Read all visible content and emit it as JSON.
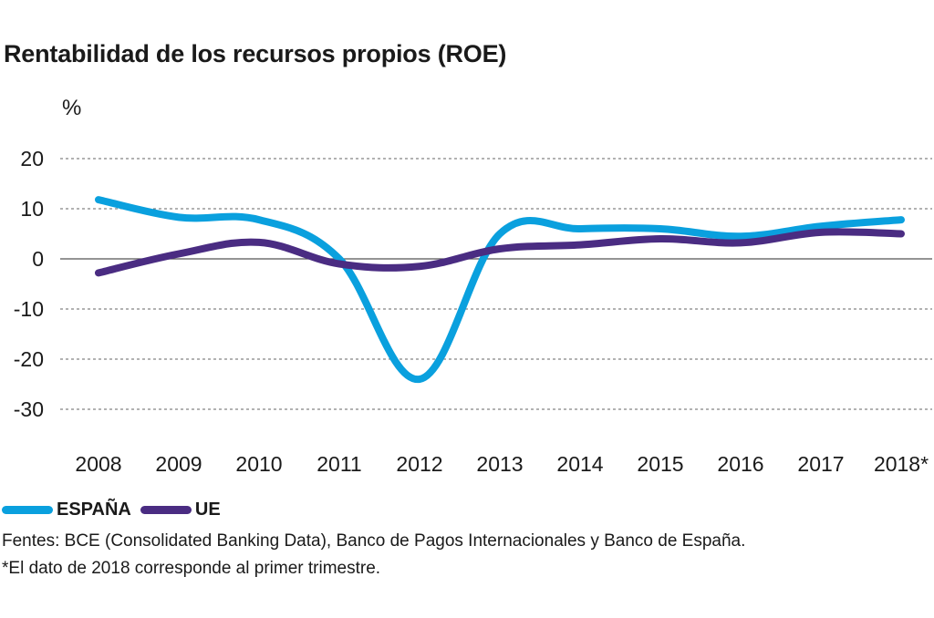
{
  "title": "Rentabilidad de los recursos propios (ROE)",
  "unit_label": "%",
  "legend": [
    {
      "label": "ESPAÑA",
      "color": "#0aa0de"
    },
    {
      "label": "UE",
      "color": "#4a2c82"
    }
  ],
  "notes": [
    "Fentes: BCE (Consolidated Banking Data), Banco de Pagos Internacionales y Banco de España.",
    "*El dato de 2018 corresponde al primer trimestre."
  ],
  "chart_data": {
    "type": "line",
    "title": "Rentabilidad de los recursos propios (ROE)",
    "ylabel": "%",
    "categories": [
      "2008",
      "2009",
      "2010",
      "2011",
      "2012",
      "2013",
      "2014",
      "2015",
      "2016",
      "2017",
      "2018*"
    ],
    "yticks": [
      "20",
      "10",
      "0",
      "-10",
      "-20",
      "-30"
    ],
    "ylim": [
      -30,
      20
    ],
    "grid": "horizontal dashed",
    "legend_position": "bottom-left",
    "series": [
      {
        "name": "ESPAÑA",
        "color": "#0aa0de",
        "values": [
          11.8,
          8.3,
          7.8,
          0,
          -24,
          5.0,
          6.0,
          6.0,
          4.5,
          6.5,
          7.8
        ]
      },
      {
        "name": "UE",
        "color": "#4a2c82",
        "values": [
          -2.8,
          1.0,
          3.3,
          -1.0,
          -1.5,
          2.0,
          2.8,
          4.0,
          3.2,
          5.3,
          5.0
        ]
      }
    ]
  }
}
